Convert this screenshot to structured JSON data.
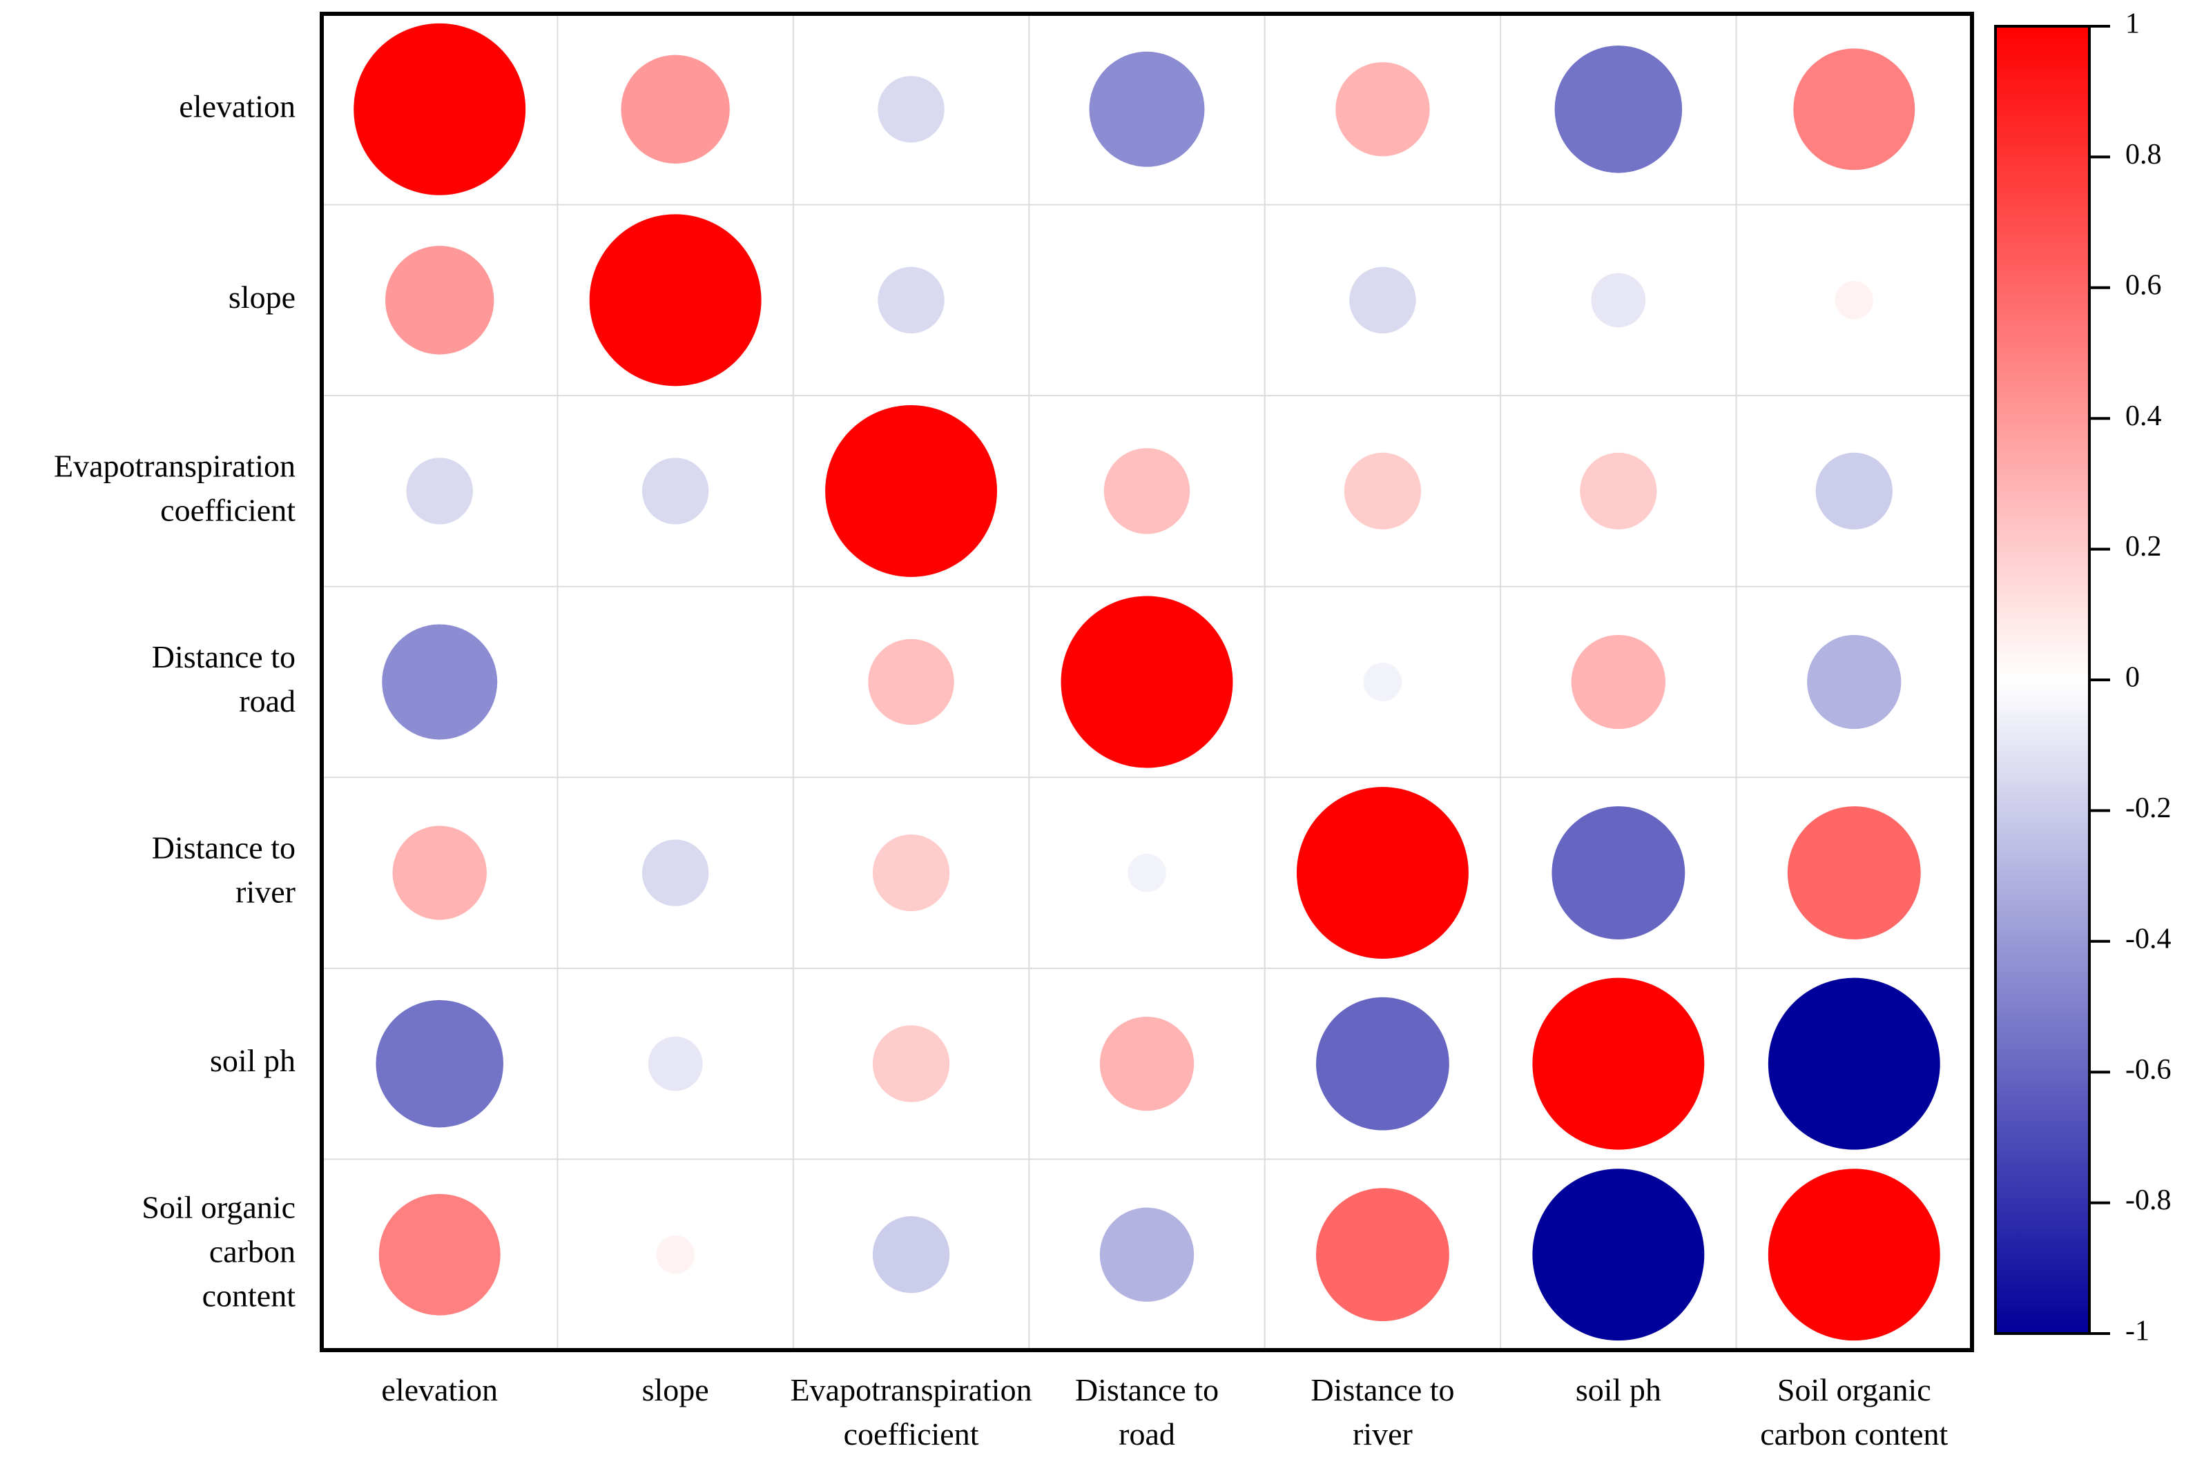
{
  "chart_data": {
    "type": "heatmap",
    "title": "",
    "variables": [
      [
        "elevation"
      ],
      [
        "slope"
      ],
      [
        "Evapotranspiration",
        "coefficient"
      ],
      [
        "Distance to",
        "road"
      ],
      [
        "Distance to",
        "river"
      ],
      [
        "soil ph"
      ],
      [
        "Soil organic",
        "carbon",
        "content"
      ]
    ],
    "x_labels": [
      [
        "elevation"
      ],
      [
        "slope"
      ],
      [
        "Evapotranspiration",
        "coefficient"
      ],
      [
        "Distance to",
        "road"
      ],
      [
        "Distance to",
        "river"
      ],
      [
        "soil ph"
      ],
      [
        "Soil organic",
        "carbon content"
      ]
    ],
    "matrix": [
      [
        1.0,
        0.4,
        -0.15,
        -0.45,
        0.3,
        -0.55,
        0.5
      ],
      [
        0.4,
        1.0,
        -0.15,
        0.0,
        -0.15,
        -0.1,
        0.05
      ],
      [
        -0.15,
        -0.15,
        1.0,
        0.25,
        0.2,
        0.2,
        -0.2
      ],
      [
        -0.45,
        0.0,
        0.25,
        1.0,
        -0.05,
        0.3,
        -0.3
      ],
      [
        0.3,
        -0.15,
        0.2,
        -0.05,
        1.0,
        -0.6,
        0.6
      ],
      [
        -0.55,
        -0.1,
        0.2,
        0.3,
        -0.6,
        1.0,
        -1.0
      ],
      [
        0.5,
        0.05,
        -0.2,
        -0.3,
        0.6,
        -1.0,
        1.0
      ]
    ],
    "colorbar": {
      "range": [
        -1,
        1
      ],
      "ticks": [
        1,
        0.8,
        0.6,
        0.4,
        0.2,
        0,
        -0.2,
        -0.4,
        -0.6,
        -0.8,
        -1
      ],
      "tick_labels": [
        "1",
        "0.8",
        "0.6",
        "0.4",
        "0.2",
        "0",
        "-0.2",
        "-0.4",
        "-0.6",
        "-0.8",
        "-1"
      ]
    },
    "colors": {
      "positive": "#ff0000",
      "neutral": "#ffffff",
      "negative": "#00009a",
      "grid": "#dcdcdc",
      "frame": "#000000"
    }
  }
}
